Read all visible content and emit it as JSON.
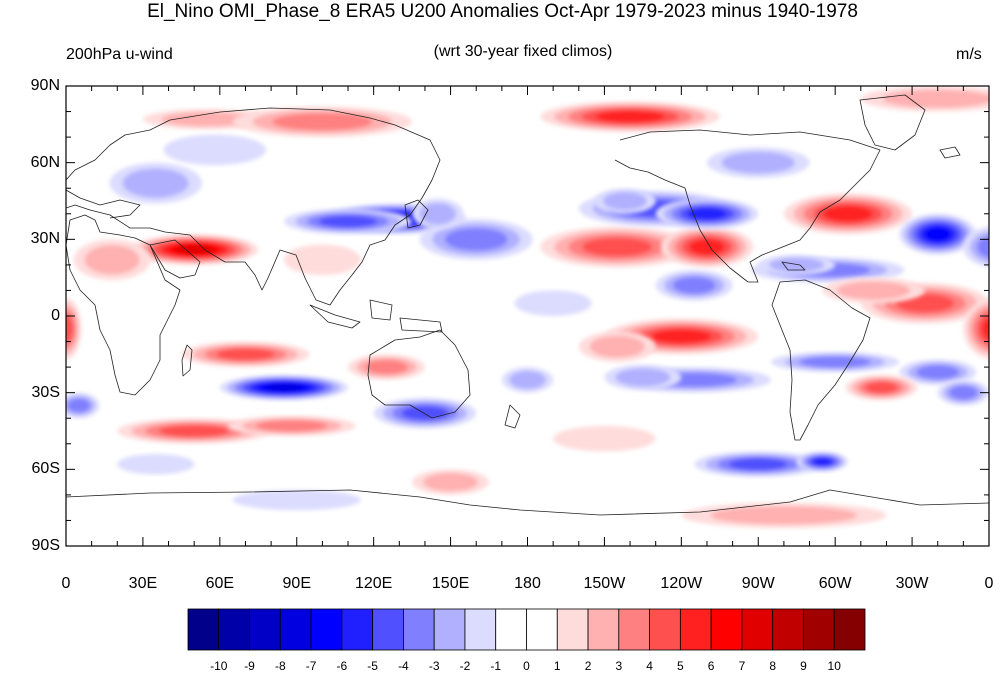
{
  "title": "El_Nino OMI_Phase_8 ERA5 U200 Anomalies Oct-Apr 1979-2023 minus 1940-1978",
  "left_label": "200hPa u-wind",
  "center_label": "(wrt 30-year fixed climos)",
  "right_label": "m/s",
  "map": {
    "projection": "cylindrical-equidistant",
    "lon_range": [
      0,
      360
    ],
    "lat_range": [
      -90,
      90
    ],
    "lat_ticks": [
      "90N",
      "60N",
      "30N",
      "0",
      "30S",
      "60S",
      "90S"
    ],
    "lon_ticks": [
      "0",
      "30E",
      "60E",
      "90E",
      "120E",
      "150E",
      "180",
      "150W",
      "120W",
      "90W",
      "60W",
      "30W",
      "0"
    ]
  },
  "colorbar": {
    "labels": [
      "-10",
      "-9",
      "-8",
      "-7",
      "-6",
      "-5",
      "-4",
      "-3",
      "-2",
      "-1",
      "0",
      "1",
      "2",
      "3",
      "4",
      "5",
      "6",
      "7",
      "8",
      "9",
      "10"
    ],
    "colors": [
      "#00008a",
      "#0000a8",
      "#0000c6",
      "#0000e0",
      "#0000ff",
      "#2020ff",
      "#5050ff",
      "#8080ff",
      "#b0b0ff",
      "#dcdcff",
      "#ffffff",
      "#ffffff",
      "#ffdcdc",
      "#ffb0b0",
      "#ff8080",
      "#ff5050",
      "#ff2020",
      "#ff0000",
      "#e00000",
      "#c00000",
      "#a00000",
      "#850000"
    ]
  },
  "anomalies": [
    {
      "lon": 128,
      "lat": 38,
      "rlon": 28,
      "rlat": 6,
      "v": -8
    },
    {
      "lon": 110,
      "lat": 37,
      "rlon": 25,
      "rlat": 5,
      "v": -5
    },
    {
      "lon": 160,
      "lat": 30,
      "rlon": 22,
      "rlat": 8,
      "v": -4
    },
    {
      "lon": 145,
      "lat": 40,
      "rlon": 10,
      "rlat": 6,
      "v": -3
    },
    {
      "lon": 35,
      "lat": 52,
      "rlon": 18,
      "rlat": 8,
      "v": -3
    },
    {
      "lon": 58,
      "lat": 65,
      "rlon": 20,
      "rlat": 6,
      "v": -2
    },
    {
      "lon": 50,
      "lat": 26,
      "rlon": 25,
      "rlat": 6,
      "v": 8
    },
    {
      "lon": 18,
      "lat": 22,
      "rlon": 15,
      "rlat": 8,
      "v": 3
    },
    {
      "lon": 100,
      "lat": 22,
      "rlon": 15,
      "rlat": 6,
      "v": 2
    },
    {
      "lon": 215,
      "lat": 27,
      "rlon": 30,
      "rlat": 8,
      "v": 5
    },
    {
      "lon": 250,
      "lat": 27,
      "rlon": 18,
      "rlat": 8,
      "v": 6
    },
    {
      "lon": 245,
      "lat": 12,
      "rlon": 15,
      "rlat": 6,
      "v": -4
    },
    {
      "lon": 230,
      "lat": 42,
      "rlon": 30,
      "rlat": 7,
      "v": -5
    },
    {
      "lon": 250,
      "lat": 40,
      "rlon": 20,
      "rlat": 6,
      "v": -6
    },
    {
      "lon": 218,
      "lat": 45,
      "rlon": 12,
      "rlat": 5,
      "v": -3
    },
    {
      "lon": 305,
      "lat": 40,
      "rlon": 25,
      "rlat": 8,
      "v": 6
    },
    {
      "lon": 270,
      "lat": 60,
      "rlon": 20,
      "rlat": 6,
      "v": -3
    },
    {
      "lon": 297,
      "lat": 18,
      "rlon": 30,
      "rlat": 5,
      "v": -4
    },
    {
      "lon": 285,
      "lat": 20,
      "rlon": 15,
      "rlat": 4,
      "v": -3
    },
    {
      "lon": 340,
      "lat": 32,
      "rlon": 15,
      "rlat": 8,
      "v": -7
    },
    {
      "lon": 362,
      "lat": 27,
      "rlon": 12,
      "rlat": 8,
      "v": -4
    },
    {
      "lon": 335,
      "lat": 5,
      "rlon": 25,
      "rlat": 8,
      "v": 5
    },
    {
      "lon": 362,
      "lat": -5,
      "rlon": 12,
      "rlat": 12,
      "v": 6
    },
    {
      "lon": 0,
      "lat": -5,
      "rlon": 6,
      "rlat": 12,
      "v": 5
    },
    {
      "lon": 315,
      "lat": 10,
      "rlon": 20,
      "rlat": 5,
      "v": 3
    },
    {
      "lon": 240,
      "lat": -8,
      "rlon": 30,
      "rlat": 7,
      "v": 6
    },
    {
      "lon": 215,
      "lat": -12,
      "rlon": 15,
      "rlat": 6,
      "v": 3
    },
    {
      "lon": 245,
      "lat": -25,
      "rlon": 30,
      "rlat": 5,
      "v": -4
    },
    {
      "lon": 225,
      "lat": -24,
      "rlon": 15,
      "rlat": 5,
      "v": -3
    },
    {
      "lon": 300,
      "lat": -18,
      "rlon": 25,
      "rlat": 4,
      "v": -4
    },
    {
      "lon": 340,
      "lat": -22,
      "rlon": 15,
      "rlat": 5,
      "v": -4
    },
    {
      "lon": 350,
      "lat": -30,
      "rlon": 10,
      "rlat": 5,
      "v": -4
    },
    {
      "lon": 318,
      "lat": -28,
      "rlon": 14,
      "rlat": 5,
      "v": 5
    },
    {
      "lon": 85,
      "lat": -28,
      "rlon": 25,
      "rlat": 5,
      "v": -8
    },
    {
      "lon": 70,
      "lat": -15,
      "rlon": 25,
      "rlat": 5,
      "v": 5
    },
    {
      "lon": 50,
      "lat": -45,
      "rlon": 30,
      "rlat": 5,
      "v": 5
    },
    {
      "lon": 88,
      "lat": -43,
      "rlon": 25,
      "rlat": 4,
      "v": 4
    },
    {
      "lon": 125,
      "lat": -20,
      "rlon": 15,
      "rlat": 5,
      "v": 4
    },
    {
      "lon": 140,
      "lat": -38,
      "rlon": 20,
      "rlat": 6,
      "v": -5
    },
    {
      "lon": 180,
      "lat": -25,
      "rlon": 10,
      "rlat": 5,
      "v": -3
    },
    {
      "lon": 5,
      "lat": -35,
      "rlon": 8,
      "rlat": 5,
      "v": -4
    },
    {
      "lon": 55,
      "lat": 77,
      "rlon": 25,
      "rlat": 4,
      "v": 3
    },
    {
      "lon": 100,
      "lat": 76,
      "rlon": 35,
      "rlat": 6,
      "v": 4
    },
    {
      "lon": 220,
      "lat": 78,
      "rlon": 35,
      "rlat": 6,
      "v": 6
    },
    {
      "lon": 340,
      "lat": 85,
      "rlon": 30,
      "rlat": 5,
      "v": 3
    },
    {
      "lon": 280,
      "lat": -78,
      "rlon": 40,
      "rlat": 5,
      "v": 3
    },
    {
      "lon": 150,
      "lat": -65,
      "rlon": 15,
      "rlat": 5,
      "v": 3
    },
    {
      "lon": 90,
      "lat": -72,
      "rlon": 25,
      "rlat": 4,
      "v": -2
    },
    {
      "lon": 270,
      "lat": -58,
      "rlon": 25,
      "rlat": 5,
      "v": -5
    },
    {
      "lon": 295,
      "lat": -57,
      "rlon": 10,
      "rlat": 4,
      "v": -6
    },
    {
      "lon": 35,
      "lat": -58,
      "rlon": 15,
      "rlat": 4,
      "v": -2
    },
    {
      "lon": 210,
      "lat": -48,
      "rlon": 20,
      "rlat": 5,
      "v": 2
    },
    {
      "lon": 190,
      "lat": 5,
      "rlon": 15,
      "rlat": 5,
      "v": -2
    }
  ]
}
